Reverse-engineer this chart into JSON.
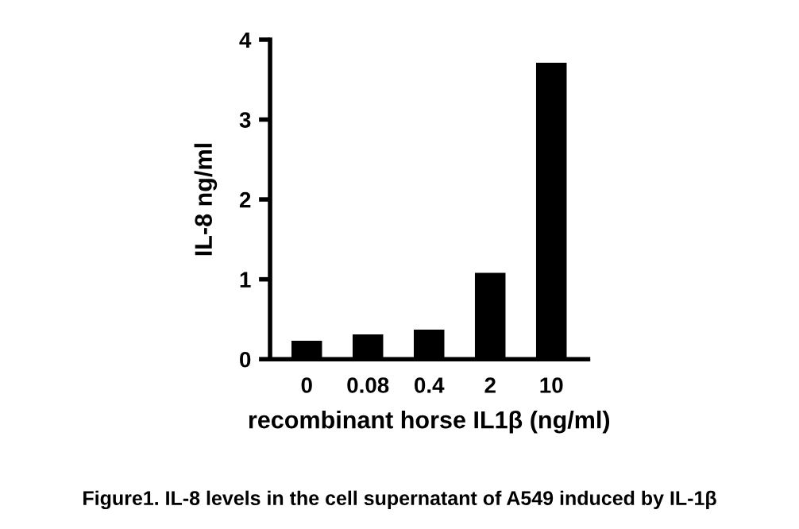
{
  "chart_data": {
    "type": "bar",
    "categories": [
      "0",
      "0.08",
      "0.4",
      "2",
      "10"
    ],
    "values": [
      0.23,
      0.31,
      0.37,
      1.08,
      3.71
    ],
    "color": "#000000",
    "xlabel": "recombinant horse IL1β (ng/ml)",
    "ylabel": "IL-8 ng/ml",
    "ylim": [
      0,
      4
    ],
    "yticks": [
      0,
      1,
      2,
      3,
      4
    ],
    "grid": false,
    "annotations": [
      "Figure1. IL-8 levels in the cell supernatant of A549 induced by IL-1β"
    ]
  }
}
